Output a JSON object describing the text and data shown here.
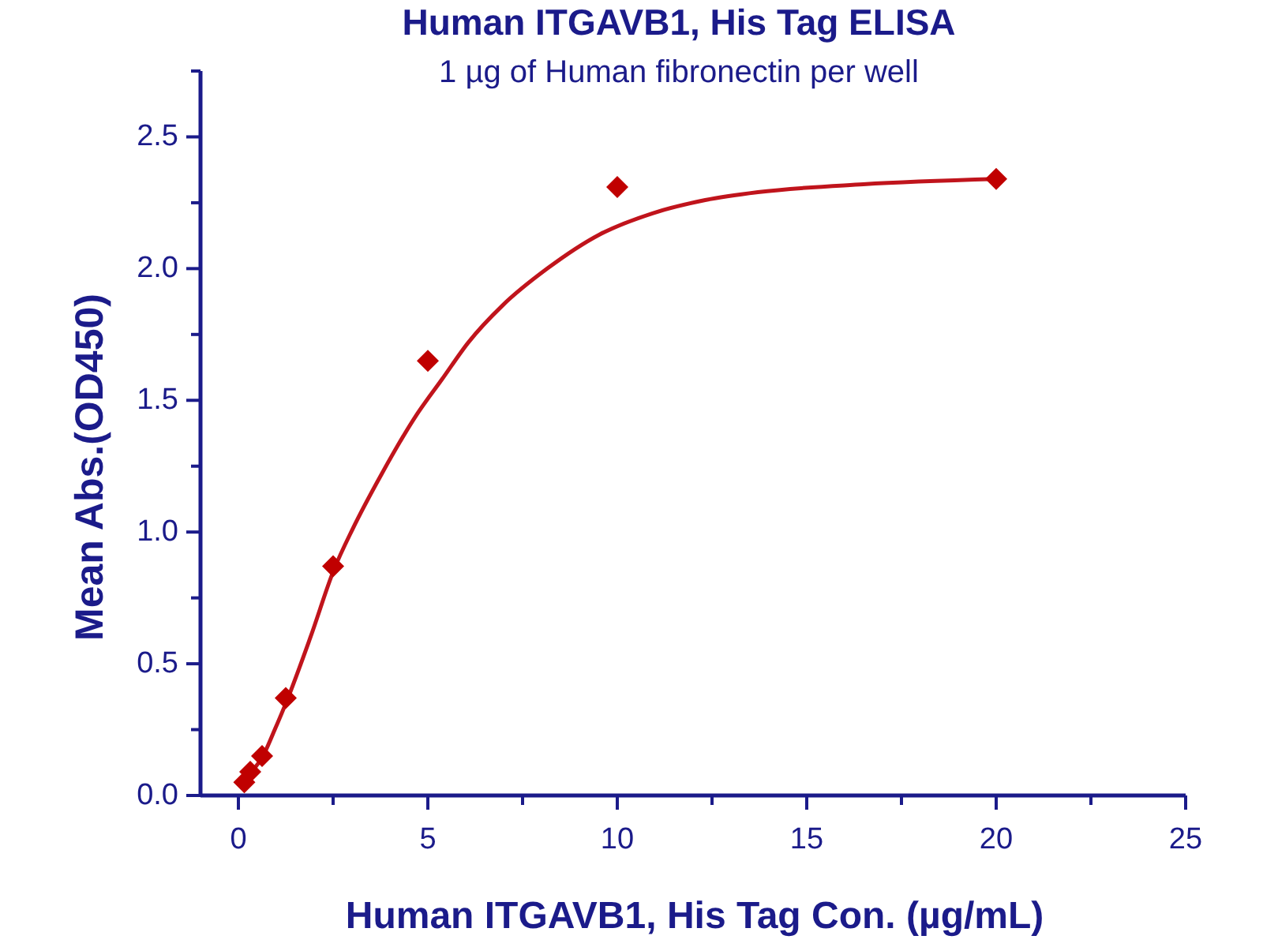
{
  "chart_data": {
    "type": "scatter",
    "title": "Human ITGAVB1, His Tag ELISA",
    "subtitle": "1 µg of Human fibronectin per well",
    "xlabel": "Human ITGAVB1, His Tag Con. (µg/mL)",
    "ylabel": "Mean Abs.(OD450)",
    "xlim": [
      -1,
      25
    ],
    "ylim": [
      0,
      2.75
    ],
    "xticks": [
      0,
      {
        "value": 2.5,
        "label": null
      },
      5,
      {
        "value": 7.5,
        "label": null
      },
      10,
      {
        "value": 12.5,
        "label": null
      },
      15,
      {
        "value": 17.5,
        "label": null
      },
      20,
      {
        "value": 22.5,
        "label": null
      },
      25
    ],
    "yticks": [
      {
        "value": 0,
        "label": "0.0"
      },
      {
        "value": 0.25,
        "label": null
      },
      0.5,
      {
        "value": 0.75,
        "label": null
      },
      {
        "value": 1,
        "label": "1.0"
      },
      {
        "value": 1.25,
        "label": null
      },
      1.5,
      {
        "value": 1.75,
        "label": null
      },
      {
        "value": 2,
        "label": "2.0"
      },
      {
        "value": 2.25,
        "label": null
      },
      2.5,
      {
        "value": 2.75,
        "label": null
      }
    ],
    "marker": "diamond",
    "series": [
      {
        "color": "#c00000",
        "x": [
          0.156,
          0.3125,
          0.625,
          1.25,
          2.5,
          5,
          10,
          20
        ],
        "values": [
          0.05,
          0.09,
          0.15,
          0.37,
          0.87,
          1.65,
          2.31,
          2.34
        ]
      },
      {
        "type": "line",
        "color": "#c0141c",
        "marker": "none",
        "x": [
          0.156,
          0.3125,
          0.65,
          0.96,
          1.28,
          1.9,
          2.53,
          3.01,
          3.78,
          4.68,
          5.375,
          6.07,
          6.97,
          8.15,
          9.54,
          10.93,
          12.32,
          13.71,
          16.49,
          20
        ],
        "values": [
          0.04,
          0.08,
          0.15,
          0.25,
          0.36,
          0.6,
          0.86,
          1.01,
          1.22,
          1.44,
          1.58,
          1.72,
          1.86,
          2.0,
          2.13,
          2.21,
          2.26,
          2.29,
          2.32,
          2.34
        ]
      }
    ]
  }
}
